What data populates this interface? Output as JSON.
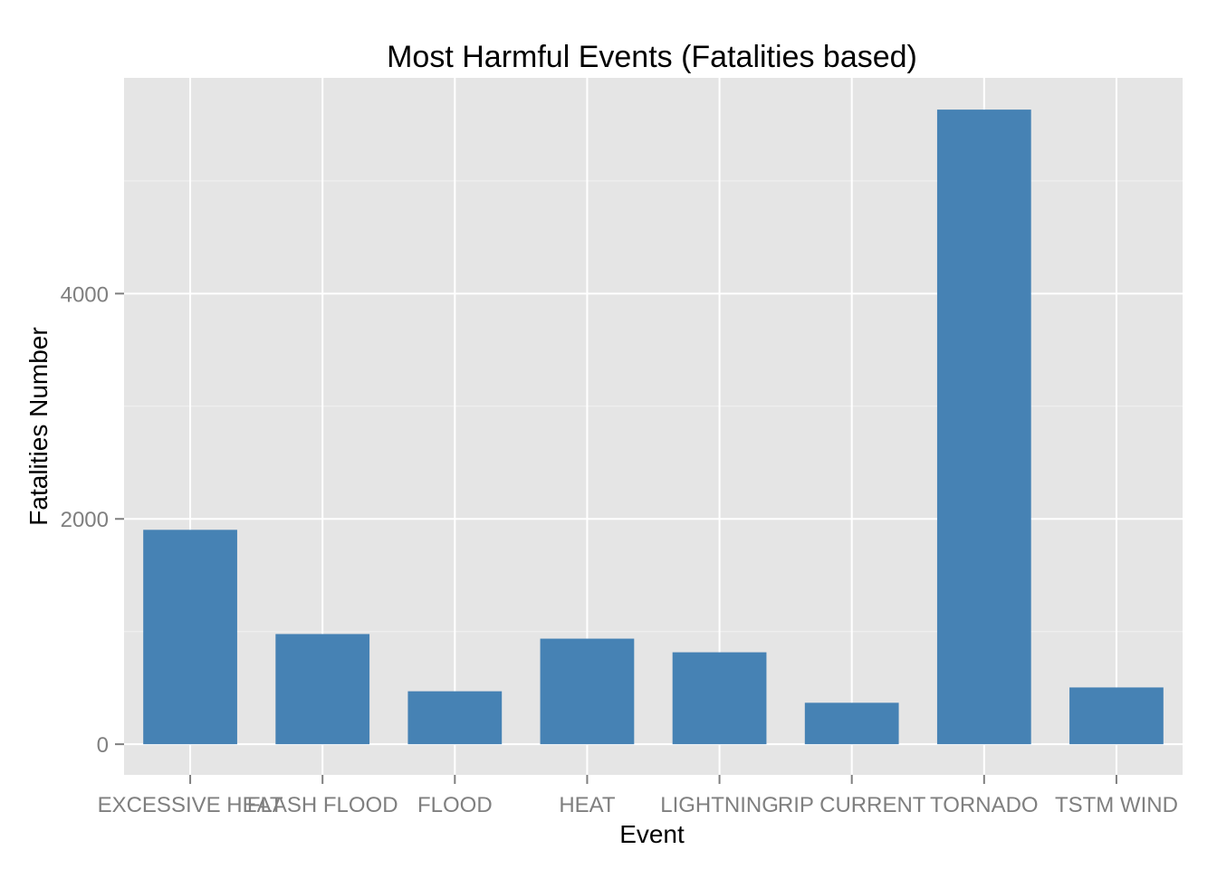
{
  "chart_data": {
    "type": "bar",
    "title": "Most Harmful Events (Fatalities based)",
    "xlabel": "Event",
    "ylabel": "Fatalities Number",
    "categories": [
      "EXCESSIVE HEAT",
      "FLASH FLOOD",
      "FLOOD",
      "HEAT",
      "LIGHTNING",
      "RIP CURRENT",
      "TORNADO",
      "TSTM WIND"
    ],
    "values": [
      1903,
      978,
      470,
      937,
      816,
      368,
      5633,
      504
    ],
    "ylim": [
      -272,
      5915
    ],
    "yticks": [
      0,
      2000,
      4000
    ],
    "ytick_labels": [
      "0",
      "2000",
      "4000"
    ],
    "grid": true,
    "legend": "none",
    "colors": {
      "bar": "#4682b4",
      "panel_background": "#e5e5e5",
      "grid_major": "#ffffff",
      "grid_minor": "#f2f2f2",
      "tick_text": "#7f7f7f",
      "tick_mark": "#7f7f7f"
    }
  }
}
